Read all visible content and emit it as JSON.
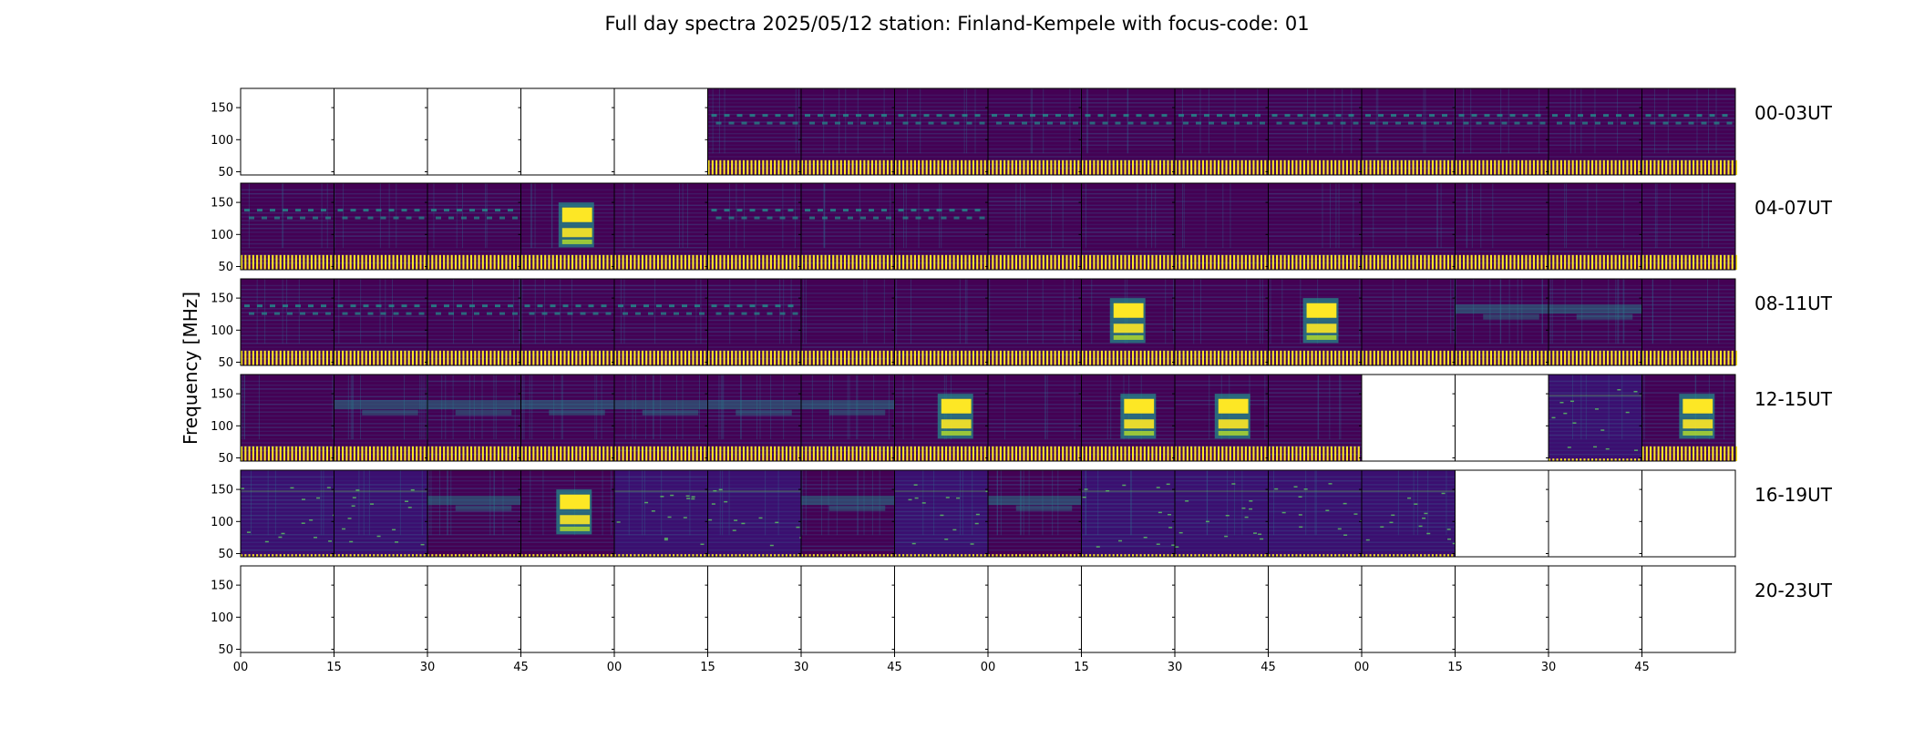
{
  "chart_data": {
    "type": "heatmap",
    "title": "Full day spectra 2025/05/12 station: Finland-Kempele with focus-code: 01",
    "ylabel": "Frequency [MHz]",
    "ylim": [
      45,
      180
    ],
    "yticks": [
      "150",
      "100",
      "50"
    ],
    "xticks": [
      "00",
      "15",
      "30",
      "45",
      "00",
      "15",
      "30",
      "45",
      "00",
      "15",
      "30",
      "45",
      "00",
      "15",
      "30",
      "45"
    ],
    "colormap": "viridis",
    "colors": {
      "low": "#440154",
      "mid": "#21918c",
      "high": "#fde725"
    },
    "rows": [
      {
        "label": "00-03UT",
        "panels": [
          "empty",
          "empty",
          "empty",
          "empty",
          "empty",
          "quiet-bursts",
          "quiet-bursts",
          "quiet-bursts",
          "quiet-bursts",
          "quiet-bursts",
          "quiet-bursts",
          "quiet-bursts",
          "quiet-bursts",
          "quiet-bursts",
          "quiet-bursts",
          "quiet-bursts"
        ]
      },
      {
        "label": "04-07UT",
        "panels": [
          "quiet-bursts",
          "quiet-bursts",
          "quiet-bursts",
          "strong-burst",
          "quiet",
          "quiet-bursts",
          "quiet-bursts",
          "quiet-bursts",
          "quiet",
          "quiet",
          "quiet",
          "quiet",
          "quiet",
          "quiet",
          "quiet",
          "quiet"
        ]
      },
      {
        "label": "08-11UT",
        "panels": [
          "quiet-bursts",
          "quiet-bursts",
          "quiet-bursts",
          "quiet-bursts",
          "quiet-bursts",
          "quiet-bursts",
          "quiet",
          "quiet",
          "quiet",
          "strong-burst",
          "quiet",
          "strong-burst",
          "quiet",
          "moderate",
          "moderate",
          "quiet"
        ]
      },
      {
        "label": "12-15UT",
        "panels": [
          "quiet",
          "moderate",
          "moderate",
          "moderate",
          "moderate",
          "moderate",
          "moderate",
          "strong-burst",
          "quiet",
          "strong-burst",
          "strong-burst",
          "quiet",
          "empty",
          "empty",
          "sparse",
          "strong-burst"
        ]
      },
      {
        "label": "16-19UT",
        "panels": [
          "sparse",
          "sparse",
          "moderate",
          "strong-burst",
          "sparse",
          "sparse",
          "moderate",
          "sparse",
          "moderate",
          "sparse",
          "sparse",
          "sparse",
          "sparse",
          "empty",
          "empty",
          "empty"
        ]
      },
      {
        "label": "20-23UT",
        "panels": [
          "empty",
          "empty",
          "empty",
          "empty",
          "empty",
          "empty",
          "empty",
          "empty",
          "empty",
          "empty",
          "empty",
          "empty",
          "empty",
          "empty",
          "empty",
          "empty"
        ]
      }
    ]
  }
}
